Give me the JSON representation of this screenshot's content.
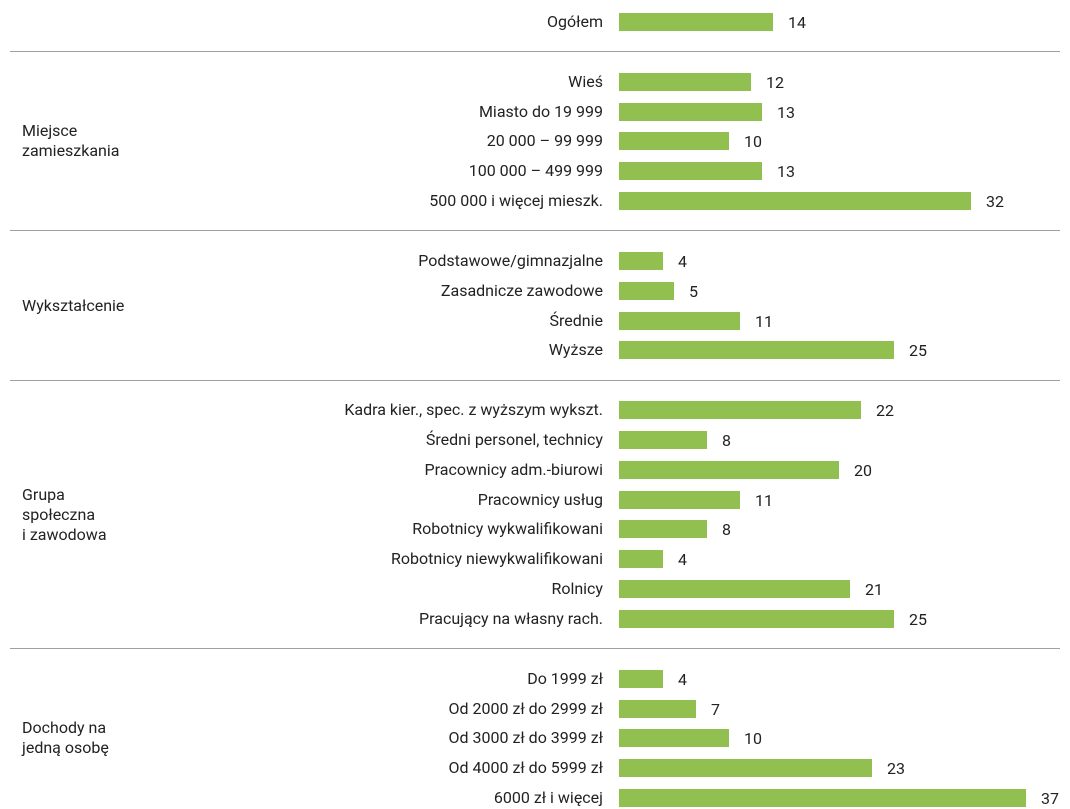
{
  "chart_data": {
    "type": "bar",
    "orientation": "horizontal",
    "color": "#92c050",
    "groups": [
      {
        "categories": [
          "Ogółem"
        ],
        "values": [
          14
        ]
      },
      {
        "name_lines": [
          "Miejsce",
          "zamieszkania"
        ],
        "categories": [
          "Wieś",
          "Miasto do 19 999",
          "20 000 – 99 999",
          "100 000 – 499 999",
          "500 000 i więcej mieszk."
        ],
        "values": [
          12,
          13,
          10,
          13,
          32
        ]
      },
      {
        "name_lines": [
          "Wykształcenie"
        ],
        "categories": [
          "Podstawowe/gimnazjalne",
          "Zasadnicze zawodowe",
          "Średnie",
          "Wyższe"
        ],
        "values": [
          4,
          5,
          11,
          25
        ]
      },
      {
        "name_lines": [
          "Grupa",
          "społeczna",
          "i zawodowa"
        ],
        "categories": [
          "Kadra kier., spec. z wyższym wykszt.",
          "Średni personel, technicy",
          "Pracownicy adm.-biurowi",
          "Pracownicy usług",
          "Robotnicy wykwalifikowani",
          "Robotnicy niewykwalifikowani",
          "Rolnicy",
          "Pracujący na własny rach."
        ],
        "values": [
          22,
          8,
          20,
          11,
          8,
          4,
          21,
          25
        ]
      },
      {
        "name_lines": [
          "Dochody na",
          "jedną osobę"
        ],
        "categories": [
          "Do 1999 zł",
          "Od 2000 zł do 2999 zł",
          "Od 3000 zł do 3999 zł",
          "Od 4000 zł do 5999 zł",
          "6000 zł i więcej"
        ],
        "values": [
          4,
          7,
          10,
          23,
          37
        ]
      }
    ]
  }
}
